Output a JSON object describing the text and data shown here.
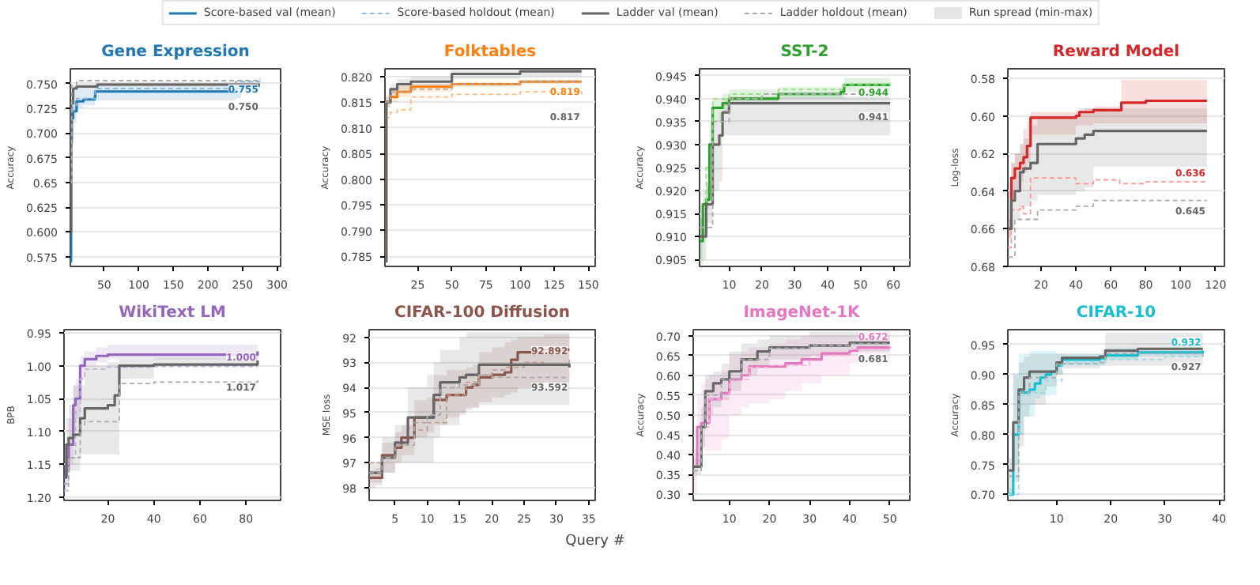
{
  "chart_data": [
    {
      "type": "step",
      "title": "Gene Expression",
      "ylabel": "Accuracy",
      "legend": "top",
      "grid": "y",
      "annotations": [
        "Run spread (min-max)",
        {
          "text": "0.755",
          "x": 275,
          "y": 0.755
        },
        {
          "text": "0.750",
          "x": 275,
          "y": 0.75
        }
      ],
      "xlim": [
        1,
        305
      ],
      "xticks": [
        50,
        100,
        150,
        200,
        250,
        300
      ],
      "ylim": [
        0.565,
        0.765
      ],
      "yticks": [
        0.575,
        {
          "value": 0.6,
          "label": "0.600"
        },
        0.625,
        0.65,
        0.675,
        {
          "value": 0.7,
          "label": "0.700"
        },
        0.725,
        {
          "value": 0.75,
          "label": "0.750"
        }
      ],
      "series": [
        {
          "name": "Score-based val (mean)",
          "color": "#1f77b4",
          "x": [
            1,
            2,
            3,
            5,
            10,
            20,
            36,
            37,
            240,
            248,
            275
          ],
          "values": [
            0.57,
            0.69,
            0.715,
            0.722,
            0.732,
            0.734,
            0.736,
            0.742,
            0.745,
            0.748,
            0.748
          ],
          "lower": [
            0.566,
            0.66,
            0.7,
            0.71,
            0.725,
            0.728,
            0.73,
            0.733,
            0.735,
            0.745,
            0.745
          ],
          "upper": [
            0.6,
            0.72,
            0.735,
            0.74,
            0.745,
            0.745,
            0.746,
            0.748,
            0.75,
            0.75,
            0.75
          ]
        },
        {
          "name": "Score-based holdout (mean)",
          "color": "#8fbbd9",
          "line_style": "dashed",
          "x": [
            1,
            2,
            5,
            10,
            37,
            240,
            275
          ],
          "values": [
            0.62,
            0.72,
            0.728,
            0.735,
            0.745,
            0.752,
            0.755
          ]
        },
        {
          "name": "Ladder val (mean)",
          "color": "#666666",
          "x": [
            1,
            2,
            5,
            10,
            40,
            275
          ],
          "values": [
            0.6,
            0.73,
            0.745,
            0.747,
            0.749,
            0.749
          ],
          "lower": [
            0.58,
            0.72,
            0.74,
            0.745,
            0.747,
            0.747
          ],
          "upper": [
            0.62,
            0.74,
            0.748,
            0.75,
            0.751,
            0.751
          ]
        },
        {
          "name": "Ladder holdout (mean)",
          "color": "#aaaaaa",
          "line_style": "dashed",
          "x": [
            1,
            3,
            10,
            275
          ],
          "values": [
            0.65,
            0.748,
            0.753,
            0.755
          ]
        }
      ]
    },
    {
      "type": "step",
      "title": "Folktables",
      "ylabel": "Accuracy",
      "grid": "y",
      "annotations": [
        {
          "text": "0.819",
          "x": 145,
          "y": 0.819
        },
        {
          "text": "0.817",
          "x": 145,
          "y": 0.8165
        }
      ],
      "xlim": [
        1,
        155
      ],
      "xticks": [
        25,
        50,
        75,
        100,
        125,
        150
      ],
      "ylim": [
        0.783,
        0.8215
      ],
      "yticks": [
        0.785,
        {
          "value": 0.79,
          "label": "0.790"
        },
        0.795,
        {
          "value": 0.8,
          "label": "0.800"
        },
        0.805,
        {
          "value": 0.81,
          "label": "0.810"
        },
        0.815,
        {
          "value": 0.82,
          "label": "0.820"
        }
      ],
      "series": [
        {
          "color": "#ff7f0e",
          "x": [
            1,
            2,
            5,
            10,
            20,
            50,
            100,
            145
          ],
          "values": [
            0.784,
            0.815,
            0.816,
            0.817,
            0.818,
            0.8185,
            0.819,
            0.819
          ],
          "lower": [
            0.7835,
            0.814,
            0.815,
            0.816,
            0.817,
            0.818,
            0.8185,
            0.8185
          ],
          "upper": [
            0.79,
            0.8165,
            0.8175,
            0.818,
            0.8185,
            0.819,
            0.8193,
            0.8193
          ]
        },
        {
          "color": "#ffbb78",
          "line_style": "dashed",
          "x": [
            1,
            5,
            10,
            20,
            50,
            100,
            145
          ],
          "values": [
            0.812,
            0.813,
            0.8135,
            0.816,
            0.8165,
            0.817,
            0.8165
          ]
        },
        {
          "color": "#666666",
          "x": [
            1,
            2,
            5,
            10,
            20,
            50,
            100,
            145
          ],
          "values": [
            0.784,
            0.815,
            0.8175,
            0.8185,
            0.819,
            0.8205,
            0.821,
            0.821
          ],
          "lower": [
            0.7835,
            0.814,
            0.8165,
            0.8175,
            0.818,
            0.8195,
            0.82,
            0.82
          ],
          "upper": [
            0.786,
            0.816,
            0.8185,
            0.8195,
            0.82,
            0.8212,
            0.8214,
            0.8214
          ]
        },
        {
          "color": "#aaaaaa",
          "line_style": "dashed",
          "x": [
            1,
            5,
            20,
            50,
            100,
            145
          ],
          "values": [
            0.815,
            0.817,
            0.8175,
            0.8185,
            0.819,
            0.819
          ]
        }
      ]
    },
    {
      "type": "step",
      "title": "SST-2",
      "ylabel": "Accuracy",
      "grid": "y",
      "annotations": [
        {
          "text": "0.944",
          "x": 59,
          "y": 0.9435
        },
        {
          "text": "0.941",
          "x": 59,
          "y": 0.941
        }
      ],
      "xlim": [
        1,
        65
      ],
      "xticks": [
        10,
        20,
        30,
        40,
        50,
        60
      ],
      "ylim": [
        0.9035,
        0.9465
      ],
      "yticks": [
        0.905,
        {
          "value": 0.91,
          "label": "0.910"
        },
        0.915,
        {
          "value": 0.92,
          "label": "0.920"
        },
        0.925,
        {
          "value": 0.93,
          "label": "0.930"
        },
        0.935,
        {
          "value": 0.94,
          "label": "0.940"
        },
        0.945
      ],
      "series": [
        {
          "color": "#2ca02c",
          "x": [
            1,
            2,
            3,
            4,
            5,
            8,
            10,
            20,
            25,
            44,
            45,
            59
          ],
          "values": [
            0.909,
            0.917,
            0.918,
            0.93,
            0.938,
            0.939,
            0.94,
            0.94,
            0.941,
            0.9415,
            0.943,
            0.943
          ],
          "lower": [
            0.904,
            0.914,
            0.916,
            0.925,
            0.935,
            0.937,
            0.939,
            0.939,
            0.94,
            0.94,
            0.9415,
            0.9415
          ],
          "upper": [
            0.914,
            0.92,
            0.921,
            0.935,
            0.94,
            0.941,
            0.942,
            0.942,
            0.9425,
            0.9425,
            0.9445,
            0.9445
          ]
        },
        {
          "color": "#98df8a",
          "line_style": "dashed",
          "x": [
            1,
            3,
            5,
            10,
            25,
            35,
            45,
            59
          ],
          "values": [
            0.912,
            0.925,
            0.94,
            0.941,
            0.942,
            0.942,
            0.943,
            0.9435
          ]
        },
        {
          "color": "#666666",
          "x": [
            1,
            3,
            5,
            7,
            8,
            10,
            59
          ],
          "values": [
            0.91,
            0.917,
            0.93,
            0.932,
            0.937,
            0.939,
            0.939
          ],
          "lower": [
            0.905,
            0.913,
            0.92,
            0.922,
            0.932,
            0.932,
            0.932
          ],
          "upper": [
            0.914,
            0.922,
            0.935,
            0.937,
            0.94,
            0.9405,
            0.9405
          ]
        },
        {
          "color": "#aaaaaa",
          "line_style": "dashed",
          "x": [
            1,
            5,
            10,
            20,
            59
          ],
          "values": [
            0.912,
            0.935,
            0.94,
            0.941,
            0.941
          ]
        }
      ]
    },
    {
      "type": "step",
      "title": "Reward Model",
      "ylabel": "Log-loss",
      "grid": "y",
      "annotations": [
        {
          "text": "0.636",
          "x": 115,
          "y": 0.635
        },
        {
          "text": "0.645",
          "x": 115,
          "y": 0.645
        }
      ],
      "xlim": [
        1,
        125
      ],
      "xticks": [
        20,
        40,
        60,
        80,
        100,
        120
      ],
      "ylim": [
        0.68,
        0.575
      ],
      "yticks": [
        0.58,
        {
          "value": 0.6,
          "label": "0.60"
        },
        0.62,
        0.64,
        0.66,
        0.68
      ],
      "series": [
        {
          "color": "#d62728",
          "x": [
            1,
            3,
            5,
            8,
            10,
            12,
            14,
            40,
            42,
            50,
            66,
            80,
            115
          ],
          "values": [
            0.66,
            0.633,
            0.628,
            0.625,
            0.622,
            0.616,
            0.601,
            0.6,
            0.598,
            0.597,
            0.593,
            0.592,
            0.592
          ],
          "lower": [
            0.655,
            0.625,
            0.62,
            0.615,
            0.607,
            0.603,
            0.598,
            0.597,
            0.596,
            0.595,
            0.581,
            0.581,
            0.581
          ],
          "upper": [
            0.665,
            0.645,
            0.64,
            0.635,
            0.63,
            0.625,
            0.61,
            0.605,
            0.605,
            0.604,
            0.604,
            0.604,
            0.604
          ]
        },
        {
          "color": "#ff9896",
          "line_style": "dashed",
          "x": [
            1,
            3,
            8,
            10,
            14,
            40,
            50,
            65,
            80,
            115
          ],
          "values": [
            0.67,
            0.65,
            0.648,
            0.652,
            0.633,
            0.636,
            0.634,
            0.636,
            0.635,
            0.635
          ]
        },
        {
          "color": "#666666",
          "x": [
            1,
            3,
            5,
            8,
            10,
            14,
            18,
            40,
            45,
            50,
            115
          ],
          "values": [
            0.66,
            0.645,
            0.64,
            0.63,
            0.628,
            0.625,
            0.615,
            0.612,
            0.61,
            0.608,
            0.608
          ],
          "lower": [
            0.64,
            0.625,
            0.62,
            0.615,
            0.612,
            0.605,
            0.602,
            0.598,
            0.596,
            0.596,
            0.596
          ],
          "upper": [
            0.665,
            0.66,
            0.655,
            0.65,
            0.648,
            0.645,
            0.642,
            0.64,
            0.638,
            0.627,
            0.627
          ]
        },
        {
          "color": "#aaaaaa",
          "line_style": "dashed",
          "x": [
            1,
            5,
            10,
            18,
            40,
            50,
            115
          ],
          "values": [
            0.675,
            0.655,
            0.655,
            0.65,
            0.648,
            0.645,
            0.645
          ]
        }
      ]
    },
    {
      "type": "step",
      "title": "WikiText LM",
      "ylabel": "BPB",
      "grid": "y",
      "annotations": [
        {
          "text": "1.000",
          "x": 85,
          "y": 1.0
        },
        {
          "text": "1.017",
          "x": 85,
          "y": 1.017
        }
      ],
      "xlim": [
        1,
        95
      ],
      "xticks": [
        20,
        40,
        60,
        80
      ],
      "ylim": [
        1.205,
        0.945
      ],
      "yticks": [
        0.95,
        {
          "value": 1.0,
          "label": "1.00"
        },
        1.05,
        {
          "value": 1.1,
          "label": "1.10"
        },
        1.15,
        {
          "value": 1.2,
          "label": "1.20"
        }
      ],
      "series": [
        {
          "color": "#9467bd",
          "x": [
            1,
            2,
            3,
            5,
            6,
            8,
            10,
            15,
            20,
            85
          ],
          "values": [
            1.17,
            1.16,
            1.12,
            1.06,
            1.05,
            1.0,
            0.99,
            0.985,
            0.983,
            0.978
          ],
          "lower": [
            1.13,
            1.12,
            1.08,
            1.03,
            1.02,
            0.985,
            0.978,
            0.972,
            0.968,
            0.962
          ],
          "upper": [
            1.19,
            1.185,
            1.15,
            1.09,
            1.08,
            1.02,
            1.0,
            0.995,
            0.99,
            0.99
          ]
        },
        {
          "color": "#c5b0d5",
          "line_style": "dashed",
          "x": [
            1,
            3,
            6,
            8,
            10,
            20,
            40,
            85
          ],
          "values": [
            1.19,
            1.14,
            1.07,
            1.02,
            1.005,
            1.002,
            1.001,
            1.0
          ]
        },
        {
          "color": "#666666",
          "x": [
            1,
            2,
            3,
            5,
            8,
            10,
            20,
            23,
            25,
            40,
            85
          ],
          "values": [
            1.17,
            1.12,
            1.11,
            1.105,
            1.08,
            1.065,
            1.06,
            1.045,
            1.0,
            0.998,
            0.992
          ],
          "lower": [
            1.15,
            1.08,
            1.06,
            1.03,
            1.03,
            1.0,
            0.995,
            0.995,
            0.99,
            0.988,
            0.985
          ],
          "upper": [
            1.19,
            1.16,
            1.16,
            1.16,
            1.135,
            1.135,
            1.135,
            1.135,
            1.02,
            1.0,
            1.0
          ]
        },
        {
          "color": "#aaaaaa",
          "line_style": "dashed",
          "x": [
            1,
            3,
            8,
            10,
            20,
            25,
            40,
            85
          ],
          "values": [
            1.18,
            1.14,
            1.09,
            1.085,
            1.085,
            1.027,
            1.025,
            1.017
          ]
        }
      ]
    },
    {
      "type": "step",
      "title": "CIFAR-100 Diffusion",
      "ylabel": "MSE loss",
      "xlabel": "Query #",
      "grid": "y",
      "annotations": [
        {
          "text": "92.892",
          "x": 32,
          "y": 92.9
        },
        {
          "text": "93.592",
          "x": 32,
          "y": 93.6
        }
      ],
      "xlim": [
        1,
        36
      ],
      "xticks": [
        5,
        10,
        15,
        20,
        25,
        30,
        35
      ],
      "ylim": [
        98.5,
        91.7
      ],
      "yticks": [
        92,
        93,
        94,
        95,
        96,
        97,
        98
      ],
      "series": [
        {
          "color": "#8c564b",
          "x": [
            1,
            2,
            3,
            5,
            6,
            8,
            10,
            11,
            13,
            15,
            16,
            17,
            18,
            20,
            22,
            23,
            24,
            28,
            32
          ],
          "values": [
            97.6,
            97.6,
            96.7,
            96.4,
            96.0,
            95.2,
            95.2,
            94.5,
            94.3,
            94.3,
            94.0,
            93.9,
            93.6,
            93.5,
            93.4,
            92.9,
            92.6,
            92.5,
            92.5
          ],
          "lower": [
            97.3,
            97.2,
            96.2,
            95.8,
            95.5,
            94.5,
            94.4,
            93.5,
            93.3,
            93.3,
            93.2,
            93.1,
            92.6,
            92.4,
            92.2,
            92.1,
            92.0,
            91.9,
            91.9
          ],
          "upper": [
            98.0,
            97.9,
            97.4,
            97.0,
            96.7,
            96.0,
            95.8,
            95.5,
            95.2,
            95.0,
            94.9,
            94.8,
            94.6,
            94.4,
            94.3,
            94.2,
            94.0,
            93.8,
            93.8
          ]
        },
        {
          "color": "#c49c94",
          "line_style": "dashed",
          "x": [
            1,
            3,
            5,
            7,
            8,
            10,
            13,
            16,
            18,
            20,
            22,
            25,
            28,
            32
          ],
          "values": [
            97.0,
            96.8,
            96.3,
            95.6,
            95.7,
            95.4,
            94.3,
            93.8,
            93.5,
            93.3,
            93.2,
            93.0,
            93.1,
            92.9
          ]
        },
        {
          "color": "#666666",
          "x": [
            1,
            2,
            3,
            5,
            7,
            8,
            10,
            11,
            12,
            15,
            16,
            18,
            32
          ],
          "values": [
            97.4,
            97.4,
            96.8,
            96.2,
            95.2,
            95.2,
            95.2,
            94.3,
            93.8,
            93.6,
            93.5,
            93.1,
            93.2
          ],
          "lower": [
            97.0,
            97.0,
            96.0,
            95.5,
            94.0,
            94.0,
            93.5,
            93.0,
            92.5,
            92.0,
            91.8,
            91.8,
            91.8
          ],
          "upper": [
            97.8,
            97.8,
            97.4,
            97.0,
            97.0,
            97.0,
            97.0,
            96.0,
            95.5,
            95.1,
            94.8,
            94.7,
            94.7
          ]
        },
        {
          "color": "#aaaaaa",
          "line_style": "dashed",
          "x": [
            1,
            3,
            5,
            8,
            10,
            12,
            15,
            18,
            20,
            32
          ],
          "values": [
            97.4,
            96.8,
            96.3,
            95.4,
            95.1,
            94.0,
            93.9,
            93.5,
            93.6,
            93.6
          ]
        }
      ]
    },
    {
      "type": "step",
      "title": "ImageNet-1K",
      "ylabel": "Accuracy",
      "grid": "y",
      "annotations": [
        {
          "text": "0.672",
          "x": 50,
          "y": 0.675
        },
        {
          "text": "0.681",
          "x": 50,
          "y": 0.668
        }
      ],
      "xlim": [
        1,
        55
      ],
      "xticks": [
        10,
        20,
        30,
        40,
        50
      ],
      "ylim": [
        0.285,
        0.715
      ],
      "yticks": [
        {
          "value": 0.3,
          "label": "0.30"
        },
        0.35,
        {
          "value": 0.4,
          "label": "0.40"
        },
        0.45,
        {
          "value": 0.5,
          "label": "0.50"
        },
        0.55,
        {
          "value": 0.6,
          "label": "0.60"
        },
        0.65,
        {
          "value": 0.7,
          "label": "0.70"
        }
      ],
      "series": [
        {
          "color": "#e377c2",
          "x": [
            1,
            2,
            3,
            4,
            5,
            8,
            10,
            13,
            15,
            20,
            24,
            28,
            33,
            40,
            42,
            50
          ],
          "values": [
            0.37,
            0.47,
            0.48,
            0.48,
            0.54,
            0.555,
            0.59,
            0.6,
            0.622,
            0.622,
            0.63,
            0.64,
            0.655,
            0.662,
            0.67,
            0.672
          ],
          "lower": [
            0.3,
            0.38,
            0.41,
            0.41,
            0.41,
            0.44,
            0.5,
            0.52,
            0.53,
            0.54,
            0.56,
            0.58,
            0.6,
            0.63,
            0.64,
            0.64
          ],
          "upper": [
            0.42,
            0.55,
            0.58,
            0.59,
            0.6,
            0.61,
            0.65,
            0.66,
            0.67,
            0.68,
            0.69,
            0.7,
            0.7,
            0.7,
            0.7,
            0.7
          ]
        },
        {
          "color": "#f7b6d2",
          "line_style": "dashed",
          "x": [
            1,
            3,
            5,
            10,
            15,
            20,
            30,
            40,
            50
          ],
          "values": [
            0.36,
            0.47,
            0.54,
            0.59,
            0.62,
            0.625,
            0.65,
            0.665,
            0.672
          ]
        },
        {
          "color": "#666666",
          "x": [
            1,
            2,
            3,
            4,
            6,
            8,
            10,
            13,
            17,
            20,
            30,
            40,
            50
          ],
          "values": [
            0.37,
            0.37,
            0.47,
            0.56,
            0.58,
            0.59,
            0.61,
            0.64,
            0.66,
            0.67,
            0.675,
            0.682,
            0.682
          ],
          "lower": [
            0.35,
            0.35,
            0.42,
            0.5,
            0.52,
            0.54,
            0.56,
            0.6,
            0.62,
            0.64,
            0.65,
            0.66,
            0.66
          ],
          "upper": [
            0.39,
            0.39,
            0.52,
            0.6,
            0.61,
            0.63,
            0.66,
            0.68,
            0.69,
            0.7,
            0.71,
            0.71,
            0.71
          ]
        },
        {
          "color": "#aaaaaa",
          "line_style": "dashed",
          "x": [
            1,
            3,
            4,
            8,
            13,
            20,
            30,
            40,
            50
          ],
          "values": [
            0.36,
            0.47,
            0.55,
            0.59,
            0.64,
            0.668,
            0.675,
            0.68,
            0.681
          ]
        }
      ]
    },
    {
      "type": "step",
      "title": "CIFAR-10",
      "ylabel": "Accuracy",
      "grid": "y",
      "annotations": [
        {
          "text": "0.932",
          "x": 37,
          "y": 0.94
        },
        {
          "text": "0.927",
          "x": 37,
          "y": 0.93
        }
      ],
      "xlim": [
        1,
        41
      ],
      "xticks": [
        10,
        20,
        30,
        40
      ],
      "ylim": [
        0.69,
        0.975
      ],
      "yticks": [
        {
          "value": 0.7,
          "label": "0.70"
        },
        0.75,
        {
          "value": 0.8,
          "label": "0.80"
        },
        0.85,
        {
          "value": 0.9,
          "label": "0.90"
        },
        0.95
      ],
      "series": [
        {
          "color": "#17becf",
          "x": [
            1,
            2,
            3,
            4,
            5,
            6,
            7,
            8,
            9,
            10,
            11,
            18,
            19,
            25,
            37
          ],
          "values": [
            0.7,
            0.8,
            0.87,
            0.87,
            0.875,
            0.885,
            0.895,
            0.9,
            0.905,
            0.915,
            0.925,
            0.927,
            0.932,
            0.937,
            0.94
          ],
          "lower": [
            0.695,
            0.75,
            0.8,
            0.83,
            0.83,
            0.86,
            0.865,
            0.865,
            0.865,
            0.9,
            0.915,
            0.915,
            0.925,
            0.93,
            0.93
          ],
          "upper": [
            0.71,
            0.9,
            0.935,
            0.935,
            0.94,
            0.94,
            0.94,
            0.94,
            0.94,
            0.935,
            0.935,
            0.935,
            0.945,
            0.945,
            0.945
          ]
        },
        {
          "color": "#9edae5",
          "line_style": "dashed",
          "x": [
            1,
            3,
            5,
            8,
            11,
            19,
            30,
            37
          ],
          "values": [
            0.7,
            0.865,
            0.87,
            0.89,
            0.92,
            0.925,
            0.93,
            0.932
          ]
        },
        {
          "color": "#666666",
          "x": [
            1,
            2,
            3,
            4,
            5,
            8,
            10,
            11,
            18,
            19,
            25,
            37
          ],
          "values": [
            0.74,
            0.82,
            0.875,
            0.895,
            0.905,
            0.905,
            0.92,
            0.928,
            0.93,
            0.94,
            0.943,
            0.943
          ],
          "lower": [
            0.7,
            0.72,
            0.78,
            0.83,
            0.85,
            0.88,
            0.9,
            0.91,
            0.915,
            0.915,
            0.915,
            0.915
          ],
          "upper": [
            0.76,
            0.9,
            0.92,
            0.93,
            0.935,
            0.935,
            0.935,
            0.935,
            0.935,
            0.97,
            0.97,
            0.97
          ]
        },
        {
          "color": "#aaaaaa",
          "line_style": "dashed",
          "x": [
            1,
            3,
            5,
            10,
            18,
            19,
            37
          ],
          "values": [
            0.73,
            0.87,
            0.895,
            0.918,
            0.92,
            0.935,
            0.927
          ]
        }
      ]
    }
  ]
}
